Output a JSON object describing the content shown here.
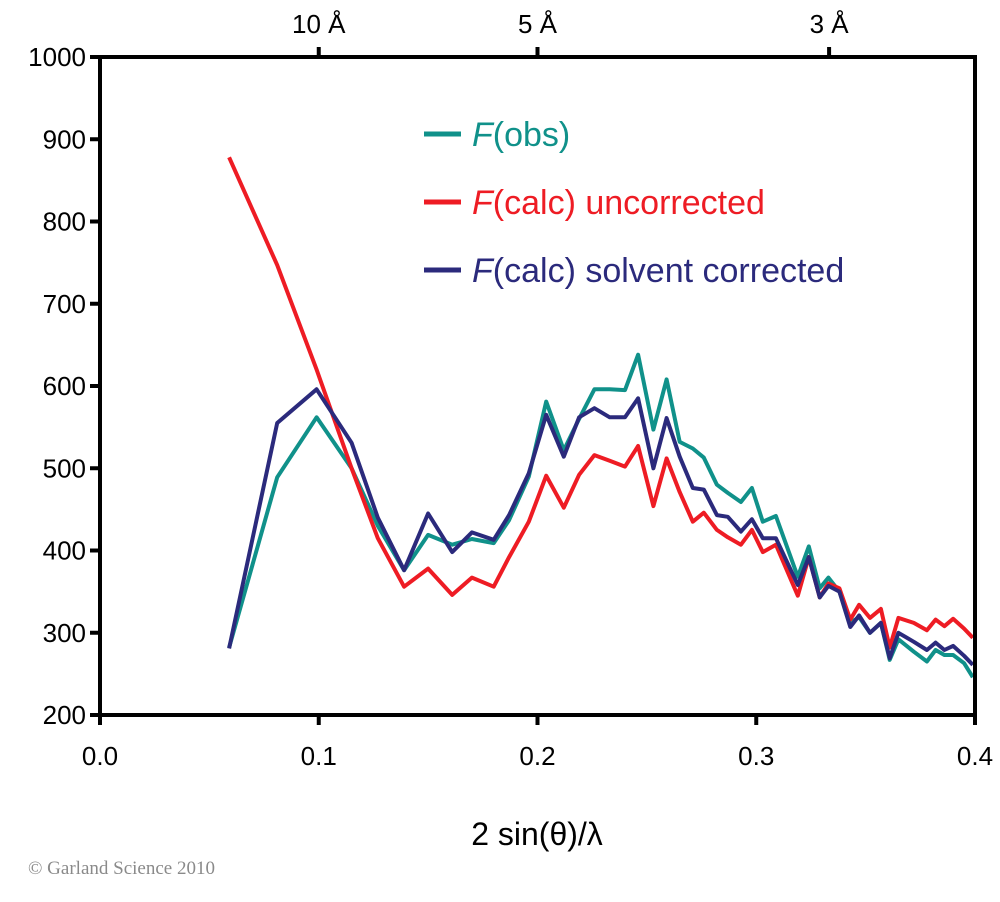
{
  "chart_data": {
    "type": "line",
    "title": "",
    "xlabel": "2 sin(θ)/λ",
    "ylabel": "",
    "xlim": [
      0.0,
      0.4
    ],
    "ylim": [
      200,
      1000
    ],
    "x_ticks": [
      "0.0",
      "0.1",
      "0.2",
      "0.3",
      "0.4"
    ],
    "y_ticks": [
      "200",
      "300",
      "400",
      "500",
      "600",
      "700",
      "800",
      "900",
      "1000"
    ],
    "top_axis": {
      "ticks": [
        {
          "label": "10 Å",
          "value": 0.1
        },
        {
          "label": "5 Å",
          "value": 0.2
        },
        {
          "label": "3 Å",
          "value": 0.3333
        }
      ]
    },
    "grid": false,
    "legend_placement": "top-center",
    "x": [
      0.059,
      0.081,
      0.099,
      0.115,
      0.127,
      0.139,
      0.15,
      0.161,
      0.17,
      0.18,
      0.187,
      0.196,
      0.204,
      0.212,
      0.219,
      0.226,
      0.233,
      0.24,
      0.246,
      0.253,
      0.259,
      0.265,
      0.271,
      0.276,
      0.282,
      0.287,
      0.293,
      0.298,
      0.303,
      0.309,
      0.319,
      0.324,
      0.329,
      0.333,
      0.338,
      0.343,
      0.347,
      0.352,
      0.357,
      0.361,
      0.365,
      0.372,
      0.378,
      0.382,
      0.386,
      0.39,
      0.395,
      0.399
    ],
    "series": [
      {
        "name": "F(obs)",
        "name_italic": "F",
        "name_rest": "(obs)",
        "color": "#10918a",
        "values": [
          282,
          489,
          562,
          500,
          430,
          376,
          419,
          407,
          414,
          409,
          437,
          490,
          581,
          522,
          560,
          596,
          596,
          595,
          638,
          547,
          608,
          532,
          524,
          513,
          480,
          470,
          459,
          476,
          435,
          442,
          368,
          405,
          354,
          367,
          350,
          312,
          319,
          300,
          312,
          267,
          292,
          277,
          265,
          279,
          273,
          273,
          263,
          246
        ]
      },
      {
        "name": "F(calc) uncorrected",
        "name_italic": "F",
        "name_rest": "(calc) uncorrected",
        "color": "#ee1c24",
        "values": [
          878,
          747,
          620,
          500,
          415,
          356,
          378,
          346,
          367,
          356,
          392,
          435,
          491,
          452,
          492,
          516,
          509,
          502,
          527,
          454,
          512,
          471,
          435,
          446,
          425,
          416,
          407,
          425,
          398,
          407,
          345,
          392,
          343,
          360,
          354,
          316,
          334,
          318,
          329,
          282,
          318,
          312,
          303,
          316,
          308,
          317,
          305,
          294
        ]
      },
      {
        "name": "F(calc) solvent corrected",
        "name_italic": "F",
        "name_rest": "(calc) solvent corrected",
        "color": "#2b2a7c",
        "values": [
          281,
          555,
          596,
          531,
          440,
          376,
          445,
          398,
          422,
          413,
          443,
          494,
          565,
          514,
          562,
          573,
          562,
          562,
          585,
          500,
          561,
          514,
          476,
          474,
          443,
          441,
          423,
          438,
          415,
          415,
          358,
          392,
          343,
          357,
          350,
          307,
          321,
          300,
          312,
          269,
          300,
          289,
          279,
          288,
          279,
          284,
          272,
          261
        ]
      }
    ]
  },
  "credit": "© Garland Science 2010"
}
